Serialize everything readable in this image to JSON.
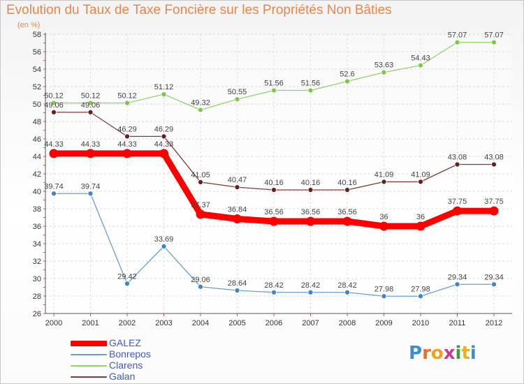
{
  "title": "Evolution du Taux de Taxe Foncière sur les Propriétés Non Bâties",
  "unit_label": "(en %)",
  "logo": {
    "letters": [
      "P",
      "r",
      "o",
      "x",
      "i",
      "t",
      "i"
    ],
    "colors": [
      "#3a8fd0",
      "#e86f2a",
      "#f0a020",
      "#c83a9a",
      "#3aa03a",
      "#e8b020",
      "#3a8fd0"
    ]
  },
  "chart_data": {
    "type": "line",
    "title": "Evolution du Taux de Taxe Foncière sur les Propriétés Non Bâties",
    "ylabel": "(en %)",
    "x": [
      "2000",
      "2001",
      "2002",
      "2003",
      "2004",
      "2005",
      "2006",
      "2007",
      "2008",
      "2009",
      "2010",
      "2011",
      "2012"
    ],
    "ylim": [
      26,
      58
    ],
    "yticks": [
      26,
      28,
      30,
      32,
      34,
      36,
      38,
      40,
      42,
      44,
      46,
      48,
      50,
      52,
      54,
      56,
      58
    ],
    "grid": true,
    "legend_position": "bottom-left",
    "series": [
      {
        "name": "Clarens",
        "color": "#92d36a",
        "point_color": "#7ac943",
        "values": [
          50.12,
          50.12,
          50.12,
          51.12,
          49.32,
          50.55,
          51.56,
          51.56,
          52.6,
          53.63,
          54.43,
          57.07,
          57.07
        ],
        "labels": [
          "50.12",
          "50.12",
          "50.12",
          "51.12",
          "49.32",
          "50.55",
          "51.56",
          "51.56",
          "52.6",
          "53.63",
          "54.43",
          "57.07",
          "57.07"
        ]
      },
      {
        "name": "Galan",
        "color": "#7e3a3a",
        "point_color": "#6a1f1f",
        "values": [
          49.06,
          49.06,
          46.29,
          46.29,
          41.05,
          40.47,
          40.16,
          40.16,
          40.16,
          41.09,
          41.09,
          43.08,
          43.08
        ],
        "labels": [
          "49.06",
          "49.06",
          "46.29",
          "46.29",
          "41.05",
          "40.47",
          "40.16",
          "40.16",
          "40.16",
          "41.09",
          "41.09",
          "43.08",
          "43.08"
        ]
      },
      {
        "name": "Bonrepos",
        "color": "#6a9ed0",
        "point_color": "#3d86c8",
        "values": [
          39.74,
          39.74,
          29.42,
          33.69,
          29.06,
          28.64,
          28.42,
          28.42,
          28.42,
          27.98,
          27.98,
          29.34,
          29.34
        ],
        "labels": [
          "39.74",
          "39.74",
          "29.42",
          "33.69",
          "29.06",
          "28.64",
          "28.42",
          "28.42",
          "28.42",
          "27.98",
          "27.98",
          "29.34",
          "29.34"
        ]
      },
      {
        "name": "GALEZ",
        "color": "#ff0000",
        "point_color": "#ff0000",
        "values": [
          44.33,
          44.33,
          44.33,
          44.33,
          37.37,
          36.84,
          36.56,
          36.56,
          36.56,
          36,
          36,
          37.75,
          37.75
        ],
        "labels": [
          "44.33",
          "44.33",
          "44.33",
          "44.33",
          "37.37",
          "36.84",
          "36.56",
          "36.56",
          "36.56",
          "36",
          "36",
          "37.75",
          "37.75"
        ]
      }
    ]
  },
  "legend": [
    {
      "name": "GALEZ",
      "color": "#ff0000",
      "text_color": "#3b5bd6"
    },
    {
      "name": "Bonrepos",
      "color": "#6a9ed0",
      "text_color": "#3b5bd6"
    },
    {
      "name": "Clarens",
      "color": "#92d36a",
      "text_color": "#3b5bd6"
    },
    {
      "name": "Galan",
      "color": "#7e3a3a",
      "text_color": "#3b5bd6"
    }
  ]
}
